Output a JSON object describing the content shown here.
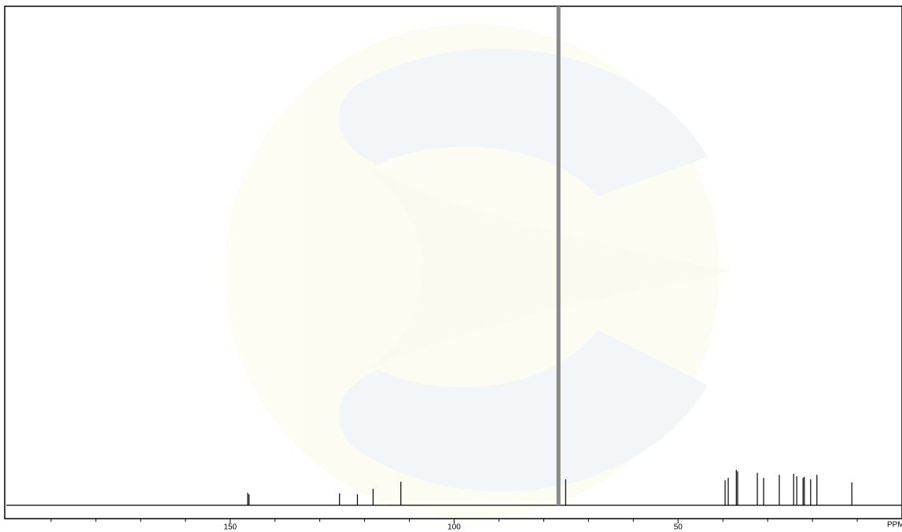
{
  "chart_data": {
    "type": "spectrum",
    "x_label": "PPM",
    "xlim": [
      200,
      0
    ],
    "ylim": [
      0,
      100
    ],
    "xticks": [
      150,
      100,
      50
    ],
    "xminorticks": [
      190,
      180,
      170,
      160,
      140,
      130,
      120,
      110,
      90,
      80,
      70,
      60,
      40,
      30,
      20,
      10
    ],
    "color": "#000000",
    "x": [
      146.1,
      145.8,
      125.6,
      121.6,
      118.1,
      111.9,
      76.7,
      75.1,
      39.5,
      38.8,
      37.0,
      36.7,
      32.3,
      30.9,
      27.4,
      24.2,
      23.5,
      22.1,
      21.8,
      20.4,
      19.0,
      11.2
    ],
    "values": [
      2.5,
      2.2,
      2.4,
      2.2,
      3.3,
      4.7,
      100,
      5.2,
      5.0,
      5.5,
      7.1,
      6.8,
      6.5,
      5.5,
      6.1,
      6.3,
      5.8,
      5.5,
      5.7,
      5.2,
      6.1,
      4.6
    ]
  }
}
